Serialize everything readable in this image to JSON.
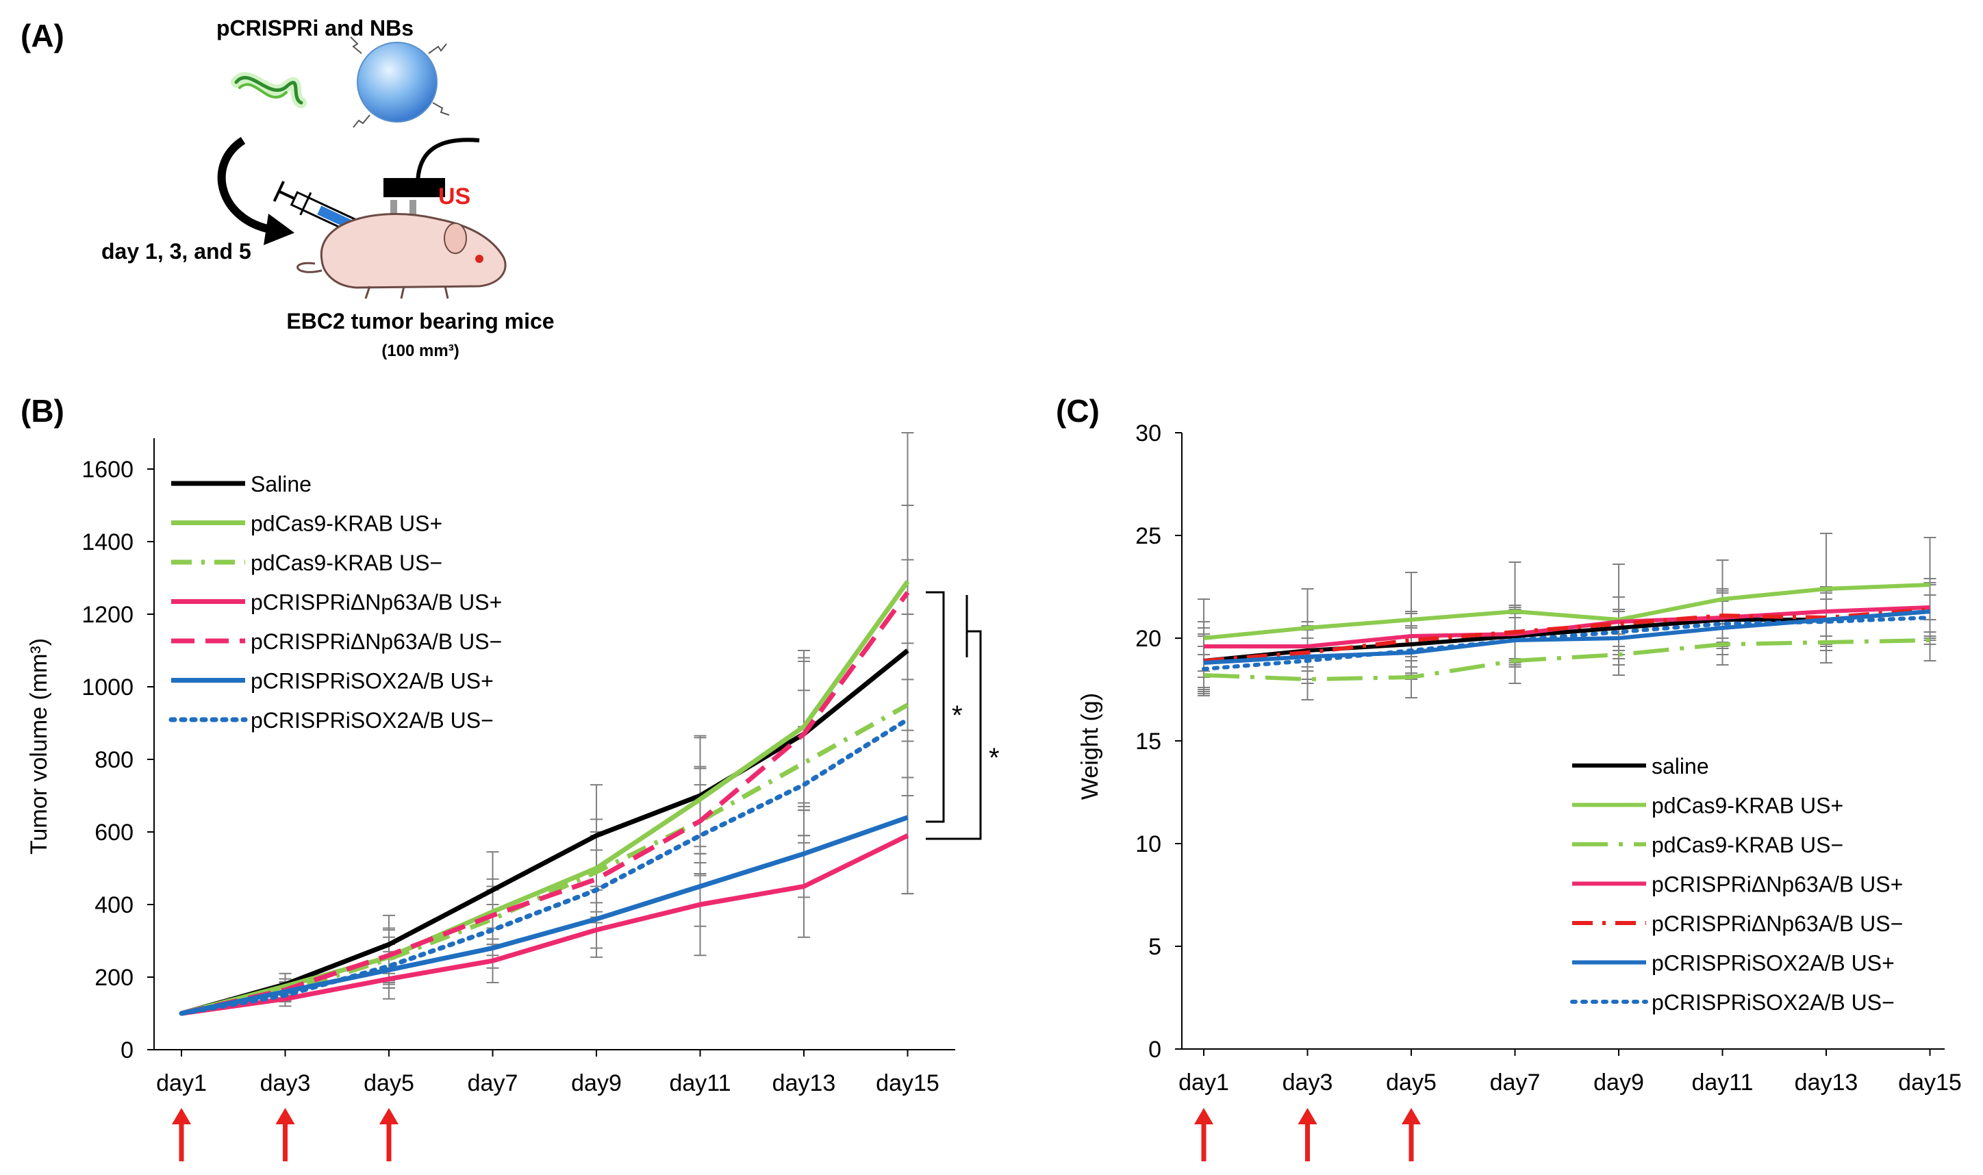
{
  "panel_a": {
    "label": "(A)",
    "title": "pCRISPRi and NBs",
    "us_label": "US",
    "schedule": "day 1, 3, and 5",
    "mice_label": "EBC2 tumor bearing mice",
    "volume_note": "(100 mm³)"
  },
  "colors": {
    "black": "#000000",
    "green": "#8CCB4E",
    "pink": "#EE2A6E",
    "red": "#E8201E",
    "blue": "#1F6EC0",
    "arrow": "#E8201E",
    "errorbar": "#7F7F7F"
  },
  "chart_data": [
    {
      "panel": "(B)",
      "type": "line",
      "ylabel": "Tumor volume (mm³)",
      "xlabel": "",
      "categories": [
        "day1",
        "day3",
        "day5",
        "day7",
        "day9",
        "day11",
        "day13",
        "day15"
      ],
      "ylim": [
        0,
        1700
      ],
      "yticks": [
        0,
        200,
        400,
        600,
        800,
        1000,
        1200,
        1400,
        1600
      ],
      "grid": false,
      "legend_position": "top-left",
      "injection_days": [
        "day1",
        "day3",
        "day5"
      ],
      "significance": [
        "*",
        "*"
      ],
      "series": [
        {
          "name": "Saline",
          "color": "black",
          "style": "solid",
          "values": [
            100,
            180,
            290,
            440,
            590,
            700,
            870,
            1100
          ],
          "errors": [
            0,
            30,
            80,
            105,
            140,
            160,
            210,
            250
          ]
        },
        {
          "name": "pdCas9-KRAB US+",
          "color": "green",
          "style": "solid",
          "values": [
            100,
            175,
            255,
            380,
            500,
            690,
            890,
            1290
          ],
          "errors": [
            0,
            20,
            75,
            90,
            135,
            175,
            210,
            410
          ]
        },
        {
          "name": "pdCas9-KRAB US−",
          "color": "green",
          "style": "dashdot",
          "values": [
            100,
            160,
            250,
            360,
            490,
            630,
            790,
            950
          ],
          "errors": [
            0,
            25,
            60,
            80,
            110,
            150,
            200,
            250
          ]
        },
        {
          "name": "pCRISPRiΔNp63A/B US+",
          "color": "pink",
          "style": "solid",
          "values": [
            100,
            140,
            195,
            245,
            330,
            400,
            450,
            590
          ],
          "errors": [
            0,
            20,
            55,
            60,
            75,
            140,
            140,
            160
          ]
        },
        {
          "name": "pCRISPRiΔNp63A/B US−",
          "color": "pink",
          "style": "dash",
          "values": [
            100,
            165,
            260,
            370,
            470,
            630,
            870,
            1260
          ],
          "errors": [
            0,
            22,
            75,
            80,
            120,
            145,
            200,
            240
          ]
        },
        {
          "name": "pCRISPRiSOX2A/B US+",
          "color": "blue",
          "style": "solid",
          "values": [
            100,
            160,
            220,
            280,
            360,
            450,
            540,
            640
          ],
          "errors": [
            0,
            20,
            50,
            55,
            80,
            110,
            120,
            210
          ]
        },
        {
          "name": "pCRISPRiSOX2A/B US−",
          "color": "blue",
          "style": "dot",
          "values": [
            100,
            150,
            230,
            330,
            440,
            590,
            730,
            910
          ],
          "errors": [
            0,
            18,
            60,
            70,
            110,
            140,
            160,
            210
          ]
        }
      ]
    },
    {
      "panel": "(C)",
      "type": "line",
      "ylabel": "Weight (g)",
      "xlabel": "",
      "categories": [
        "day1",
        "day3",
        "day5",
        "day7",
        "day9",
        "day11",
        "day13",
        "day15"
      ],
      "ylim": [
        0,
        30
      ],
      "yticks": [
        0,
        5,
        10,
        15,
        20,
        25,
        30
      ],
      "grid": false,
      "legend_position": "bottom-right",
      "injection_days": [
        "day1",
        "day3",
        "day5"
      ],
      "series": [
        {
          "name": "saline",
          "color": "black",
          "style": "solid",
          "values": [
            18.9,
            19.4,
            19.7,
            20.1,
            20.5,
            20.9,
            20.9,
            21.3
          ],
          "errors": [
            1.6,
            1.4,
            1.5,
            1.4,
            1.5,
            1.4,
            1.5,
            1.6
          ]
        },
        {
          "name": "pdCas9-KRAB US+",
          "color": "green",
          "style": "solid",
          "values": [
            20.0,
            20.5,
            20.9,
            21.3,
            20.9,
            21.9,
            22.4,
            22.6
          ],
          "errors": [
            1.9,
            1.9,
            2.3,
            2.4,
            2.7,
            1.9,
            2.7,
            2.3
          ]
        },
        {
          "name": "pdCas9-KRAB US−",
          "color": "green",
          "style": "longdashdot",
          "values": [
            18.2,
            18.0,
            18.1,
            18.9,
            19.2,
            19.7,
            19.8,
            19.9
          ],
          "errors": [
            1.0,
            1.0,
            1.0,
            1.1,
            1.0,
            1.0,
            1.0,
            1.0
          ]
        },
        {
          "name": "pCRISPRiΔNp63A/B US+",
          "color": "pink",
          "style": "solid",
          "values": [
            19.6,
            19.6,
            20.1,
            20.2,
            20.8,
            21.0,
            21.3,
            21.5
          ],
          "errors": [
            1.2,
            1.2,
            1.2,
            1.2,
            1.2,
            1.2,
            1.2,
            1.2
          ]
        },
        {
          "name": "pCRISPRiΔNp63A/B US−",
          "color": "red",
          "style": "dashdot",
          "values": [
            18.9,
            19.3,
            19.9,
            20.3,
            20.7,
            21.1,
            21.0,
            21.4
          ],
          "errors": [
            1.3,
            1.3,
            1.3,
            1.3,
            1.3,
            1.3,
            1.3,
            1.3
          ]
        },
        {
          "name": "pCRISPRiSOX2A/B US+",
          "color": "blue",
          "style": "solid",
          "values": [
            18.8,
            19.1,
            19.3,
            19.9,
            20.0,
            20.5,
            20.9,
            21.3
          ],
          "errors": [
            1.3,
            1.3,
            1.3,
            1.3,
            1.3,
            1.3,
            1.3,
            1.3
          ]
        },
        {
          "name": "pCRISPRiSOX2A/B US−",
          "color": "blue",
          "style": "dot",
          "values": [
            18.5,
            18.9,
            19.4,
            19.9,
            20.3,
            20.7,
            20.8,
            21.0
          ],
          "errors": [
            1.1,
            1.1,
            1.1,
            1.1,
            1.1,
            1.1,
            1.1,
            1.1
          ]
        }
      ]
    }
  ]
}
